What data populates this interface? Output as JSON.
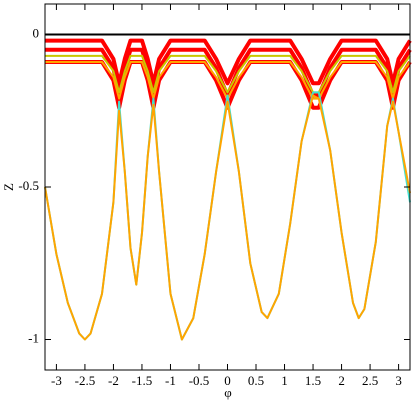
{
  "chart_data": {
    "type": "line",
    "x_label": "φ",
    "y_label": "Z",
    "x": [
      -3.2,
      -3.0,
      -2.8,
      -2.6,
      -2.5,
      -2.4,
      -2.2,
      -2.0,
      -1.9,
      -1.8,
      -1.7,
      -1.6,
      -1.5,
      -1.4,
      -1.3,
      -1.2,
      -1.0,
      -0.8,
      -0.6,
      -0.4,
      -0.2,
      0,
      0.2,
      0.4,
      0.6,
      0.7,
      0.9,
      1.1,
      1.3,
      1.5,
      1.6,
      1.8,
      2.0,
      2.2,
      2.3,
      2.4,
      2.6,
      2.8,
      2.9,
      3.0,
      3.2
    ],
    "series": [
      {
        "color": "#ff0000",
        "values": [
          -0.09,
          -0.09,
          -0.09,
          -0.09,
          -0.09,
          -0.09,
          -0.09,
          -0.15,
          -0.24,
          -0.15,
          -0.09,
          -0.09,
          -0.09,
          -0.15,
          -0.24,
          -0.15,
          -0.09,
          -0.09,
          -0.09,
          -0.09,
          -0.15,
          -0.24,
          -0.15,
          -0.09,
          -0.09,
          -0.09,
          -0.09,
          -0.09,
          -0.15,
          -0.24,
          -0.24,
          -0.15,
          -0.09,
          -0.09,
          -0.09,
          -0.09,
          -0.09,
          -0.15,
          -0.24,
          -0.15,
          -0.09
        ]
      },
      {
        "color": "#ff0000",
        "values": [
          -0.05,
          -0.05,
          -0.05,
          -0.05,
          -0.05,
          -0.05,
          -0.05,
          -0.11,
          -0.2,
          -0.11,
          -0.05,
          -0.05,
          -0.05,
          -0.11,
          -0.2,
          -0.11,
          -0.05,
          -0.05,
          -0.05,
          -0.05,
          -0.11,
          -0.2,
          -0.11,
          -0.05,
          -0.05,
          -0.05,
          -0.05,
          -0.05,
          -0.11,
          -0.2,
          -0.2,
          -0.11,
          -0.05,
          -0.05,
          -0.05,
          -0.05,
          -0.05,
          -0.11,
          -0.2,
          -0.11,
          -0.05
        ]
      },
      {
        "color": "#ff0000",
        "values": [
          -0.02,
          -0.02,
          -0.02,
          -0.02,
          -0.02,
          -0.02,
          -0.02,
          -0.08,
          -0.16,
          -0.08,
          -0.02,
          -0.02,
          -0.02,
          -0.08,
          -0.16,
          -0.08,
          -0.02,
          -0.02,
          -0.02,
          -0.02,
          -0.08,
          -0.16,
          -0.08,
          -0.02,
          -0.02,
          -0.02,
          -0.02,
          -0.02,
          -0.08,
          -0.16,
          -0.16,
          -0.08,
          -0.02,
          -0.02,
          -0.02,
          -0.02,
          -0.02,
          -0.08,
          -0.16,
          -0.08,
          -0.02
        ]
      },
      {
        "color": "#c8c800",
        "values": [
          -0.07,
          -0.07,
          -0.07,
          -0.07,
          -0.07,
          -0.07,
          -0.07,
          -0.12,
          -0.19,
          -0.12,
          -0.07,
          -0.07,
          -0.07,
          -0.12,
          -0.19,
          -0.12,
          -0.07,
          -0.07,
          -0.07,
          -0.07,
          -0.12,
          -0.19,
          -0.12,
          -0.07,
          -0.07,
          -0.07,
          -0.07,
          -0.07,
          -0.12,
          -0.19,
          -0.19,
          -0.12,
          -0.07,
          -0.07,
          -0.07,
          -0.07,
          -0.07,
          -0.12,
          -0.19,
          -0.12,
          -0.07
        ]
      },
      {
        "color": "#ffa500",
        "values": [
          -0.09,
          -0.09,
          -0.09,
          -0.09,
          -0.09,
          -0.09,
          -0.09,
          -0.14,
          -0.21,
          -0.14,
          -0.09,
          -0.09,
          -0.09,
          -0.14,
          -0.21,
          -0.14,
          -0.09,
          -0.09,
          -0.09,
          -0.09,
          -0.14,
          -0.21,
          -0.14,
          -0.09,
          -0.09,
          -0.09,
          -0.09,
          -0.09,
          -0.14,
          -0.21,
          -0.21,
          -0.14,
          -0.09,
          -0.09,
          -0.09,
          -0.09,
          -0.09,
          -0.14,
          -0.21,
          -0.14,
          -0.09
        ]
      },
      {
        "color": "#40e0d0",
        "values": [
          -0.5,
          -0.72,
          -0.88,
          -0.98,
          -1.0,
          -0.98,
          -0.85,
          -0.55,
          -0.22,
          -0.45,
          -0.7,
          -0.82,
          -0.65,
          -0.4,
          -0.21,
          -0.45,
          -0.85,
          -1.0,
          -0.93,
          -0.72,
          -0.45,
          -0.2,
          -0.45,
          -0.75,
          -0.91,
          -0.93,
          -0.85,
          -0.62,
          -0.35,
          -0.19,
          -0.19,
          -0.38,
          -0.65,
          -0.88,
          -0.93,
          -0.9,
          -0.68,
          -0.3,
          -0.21,
          -0.32,
          -0.55
        ]
      },
      {
        "color": "#ffa500",
        "values": [
          -0.5,
          -0.72,
          -0.88,
          -0.98,
          -1.0,
          -0.98,
          -0.85,
          -0.55,
          -0.25,
          -0.45,
          -0.7,
          -0.82,
          -0.65,
          -0.4,
          -0.23,
          -0.45,
          -0.85,
          -1.0,
          -0.93,
          -0.72,
          -0.45,
          -0.22,
          -0.45,
          -0.75,
          -0.91,
          -0.93,
          -0.85,
          -0.62,
          -0.35,
          -0.2,
          -0.21,
          -0.38,
          -0.65,
          -0.88,
          -0.93,
          -0.9,
          -0.68,
          -0.3,
          -0.22,
          -0.32,
          -0.52
        ]
      },
      {
        "color": "#000000",
        "values": [
          0,
          0,
          0,
          0,
          0,
          0,
          0,
          0,
          0,
          0,
          0,
          0,
          0,
          0,
          0,
          0,
          0,
          0,
          0,
          0,
          0,
          0,
          0,
          0,
          0,
          0,
          0,
          0,
          0,
          0,
          0,
          0,
          0,
          0,
          0,
          0,
          0,
          0,
          0,
          0,
          0
        ]
      }
    ],
    "xlim": [
      -3.2,
      3.2
    ],
    "ylim": [
      -1.1,
      0.1
    ],
    "xticks": [
      -3,
      -2.5,
      -2,
      -1.5,
      -1,
      -0.5,
      0,
      0.5,
      1,
      1.5,
      2,
      2.5,
      3
    ],
    "yticks": [
      0,
      -0.5,
      -1
    ]
  }
}
